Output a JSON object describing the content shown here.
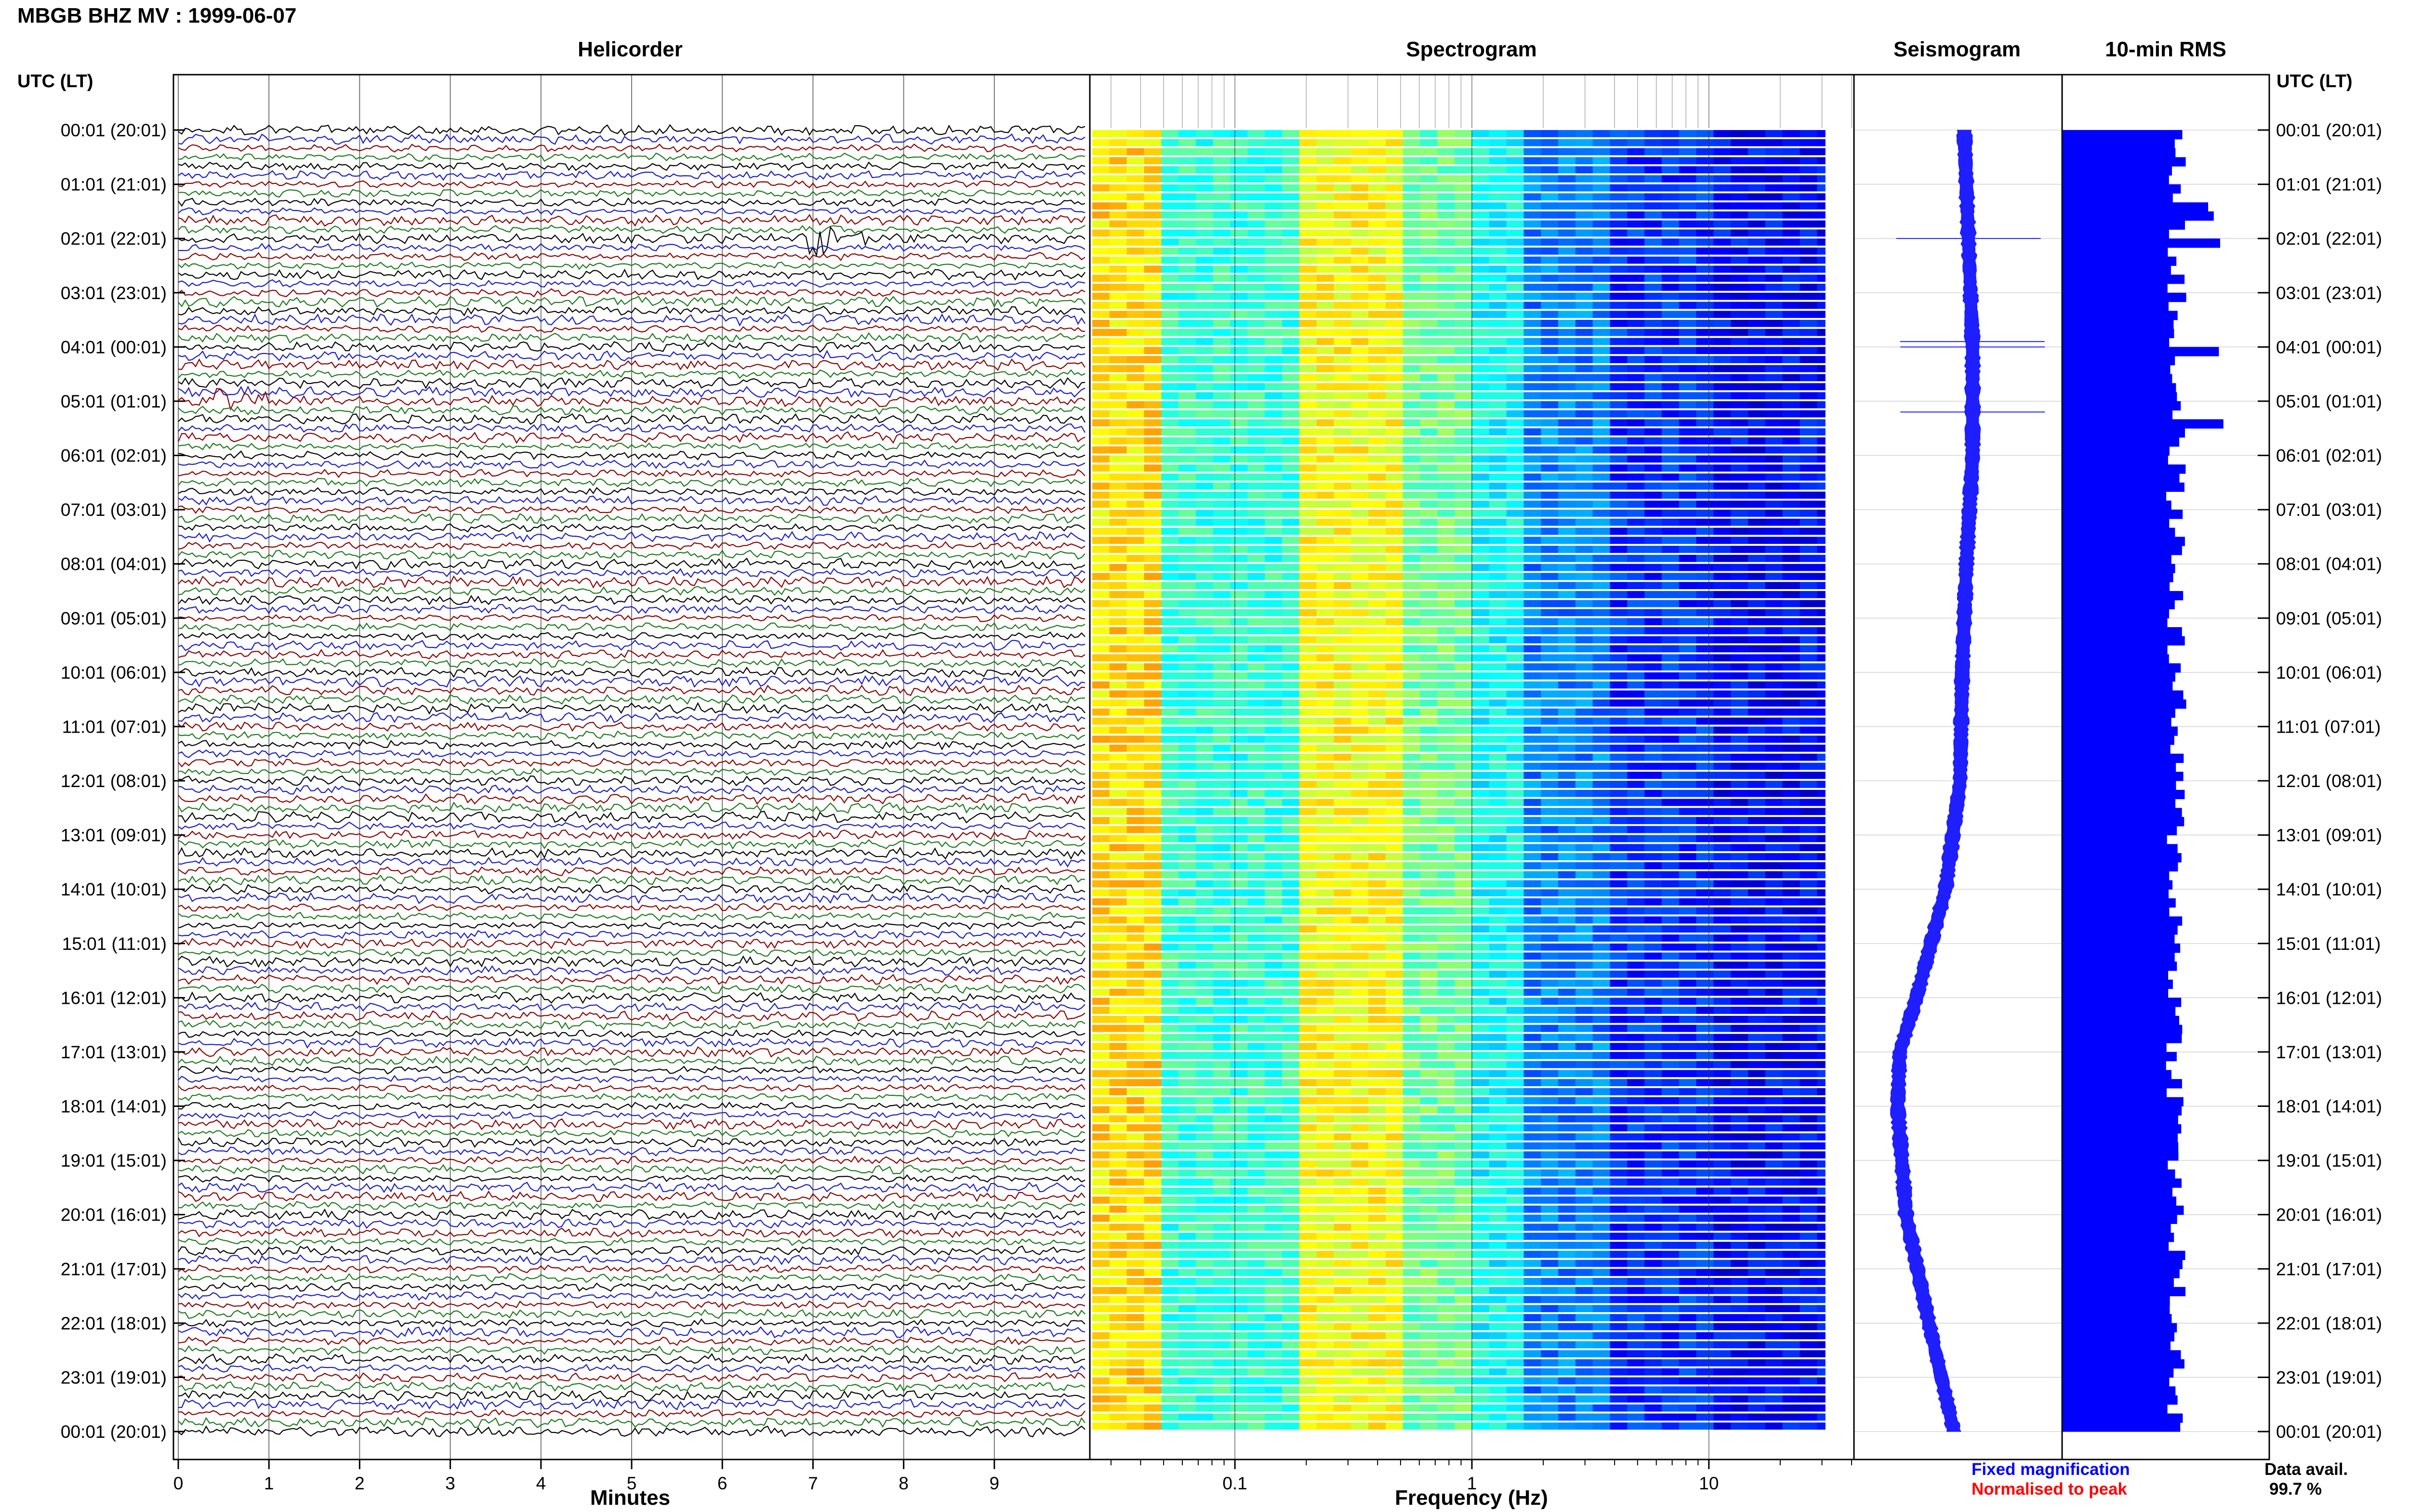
{
  "header": {
    "title": "MBGB BHZ MV : 1999-06-07",
    "utc_left": "UTC (LT)",
    "utc_right": "UTC (LT)"
  },
  "panels": {
    "helicorder": "Helicorder",
    "spectrogram": "Spectrogram",
    "seismogram": "Seismogram",
    "rms": "10-min RMS"
  },
  "axes": {
    "helicorder_xlabel": "Minutes",
    "spectrogram_xlabel": "Frequency (Hz)"
  },
  "footer": {
    "fixed_magnification": "Fixed magnification",
    "normalised_to_peak": "Normalised to peak",
    "data_avail_label": "Data avail.",
    "data_avail_value": "99.7 %"
  },
  "colors": {
    "trace_cycle": [
      "#000000",
      "#1a1acc",
      "#8b0000",
      "#1a7a1a"
    ],
    "seismogram_fill": "#1e1eff",
    "rms_fill": "#0000ff",
    "fixed_magnification": "#0000ff",
    "normalised_to_peak": "#ff0000"
  },
  "chart_data": [
    {
      "type": "line",
      "title": "Helicorder",
      "xlabel": "Minutes",
      "xlim": [
        0,
        10
      ],
      "x_ticks": [
        "0",
        "1",
        "2",
        "3",
        "4",
        "5",
        "6",
        "7",
        "8",
        "9"
      ],
      "y_tick_labels": [
        "00:01 (20:01)",
        "01:01 (21:01)",
        "02:01 (22:01)",
        "03:01 (23:01)",
        "04:01 (00:01)",
        "05:01 (01:01)",
        "06:01 (02:01)",
        "07:01 (03:01)",
        "08:01 (04:01)",
        "09:01 (05:01)",
        "10:01 (06:01)",
        "11:01 (07:01)",
        "12:01 (08:01)",
        "13:01 (09:01)",
        "14:01 (10:01)",
        "15:01 (11:01)",
        "16:01 (12:01)",
        "17:01 (13:01)",
        "18:01 (14:01)",
        "19:01 (15:01)",
        "20:01 (16:01)",
        "21:01 (17:01)",
        "22:01 (18:01)",
        "23:01 (19:01)",
        "00:01 (20:01)"
      ],
      "traces_per_hour": 6,
      "events": [
        {
          "hour": 2,
          "row": 0,
          "minute": 7.0,
          "amplitude": 3.5
        },
        {
          "hour": 5,
          "row": 0,
          "minute": 0.45,
          "amplitude": 3.0
        },
        {
          "hour": 14,
          "row": 0,
          "minute": 0.3,
          "amplitude": 1.2
        }
      ]
    },
    {
      "type": "heatmap",
      "title": "Spectrogram",
      "xlabel": "Frequency (Hz)",
      "xscale": "log",
      "xlim": [
        0.025,
        40
      ],
      "x_ticks": [
        0.1,
        1,
        10
      ],
      "x_tick_labels": [
        "0.1",
        "1",
        "10"
      ],
      "colormap": "jet",
      "rows_per_hour": 6
    },
    {
      "type": "line",
      "title": "Seismogram",
      "offset_profile_hours": [
        0,
        2,
        4,
        6,
        8,
        10,
        12,
        14,
        16,
        17,
        18,
        20,
        22,
        24
      ],
      "offset_profile_values": [
        0.35,
        0.37,
        0.39,
        0.39,
        0.36,
        0.34,
        0.33,
        0.26,
        0.12,
        0.04,
        0.03,
        0.07,
        0.18,
        0.3
      ],
      "spikes_hour": [
        2.0,
        3.9,
        4.0,
        5.2
      ]
    },
    {
      "type": "bar",
      "title": "10-min RMS",
      "bins_per_hour": 6,
      "baseline_level": 0.55,
      "peak_hours": [
        1.4,
        2.0,
        4.0,
        5.3
      ]
    }
  ]
}
